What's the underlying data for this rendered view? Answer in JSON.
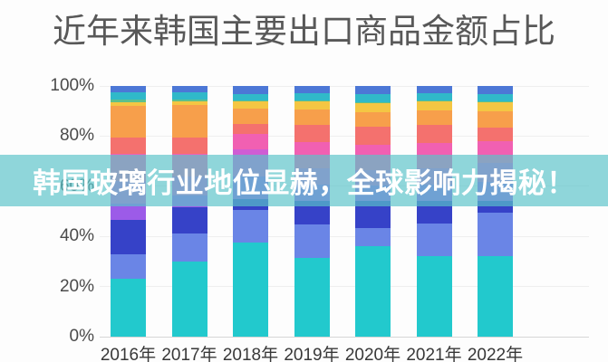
{
  "title": "近年来韩国主要出口商品金额占比",
  "overlay_banner": {
    "text": "韩国玻璃行业地位显赫，全球影响力揭秘！",
    "background": "rgba(90,195,200,0.68)",
    "text_color": "#ffffff"
  },
  "chart_data": {
    "type": "bar",
    "stacked": true,
    "title": "近年来韩国主要出口商品金额占比",
    "xlabel": "",
    "ylabel": "",
    "unit": "percent",
    "ylim": [
      0,
      100
    ],
    "grid": "faint-horizontal",
    "legend": "none",
    "y_ticks": [
      "0%",
      "20%",
      "40%",
      "60%",
      "80%",
      "100%"
    ],
    "categories": [
      "2016年",
      "2017年",
      "2018年",
      "2019年",
      "2020年",
      "2021年",
      "2022年"
    ],
    "series": [
      {
        "name": "segment-1-turquoise",
        "color": "#22c9cd",
        "values": [
          23.0,
          30.0,
          37.5,
          31.4,
          36.0,
          32.1,
          32.1
        ]
      },
      {
        "name": "segment-2-cornflower-blue",
        "color": "#6a85e6",
        "values": [
          10.0,
          11.0,
          13.0,
          13.4,
          7.5,
          13.0,
          17.4
        ]
      },
      {
        "name": "segment-3-indigo",
        "color": "#3642c8",
        "values": [
          13.5,
          10.5,
          4.5,
          9.4,
          10.7,
          9.1,
          4.7
        ]
      },
      {
        "name": "segment-4-purple",
        "color": "#9c5be8",
        "values": [
          6.5,
          5.0,
          9.0,
          6.5,
          6.2,
          6.4,
          7.5
        ]
      },
      {
        "name": "segment-5-magenta",
        "color": "#cf5dd4",
        "values": [
          9.0,
          7.5,
          10.7,
          6.5,
          6.2,
          6.5,
          7.6
        ]
      },
      {
        "name": "segment-6-pink",
        "color": "#f160b2",
        "values": [
          11.0,
          9.0,
          6.2,
          10.4,
          9.9,
          10.2,
          8.7
        ]
      },
      {
        "name": "segment-7-coral-red",
        "color": "#f4716e",
        "values": [
          6.5,
          6.5,
          3.9,
          6.9,
          7.3,
          7.2,
          5.5
        ]
      },
      {
        "name": "segment-8-orange",
        "color": "#f79f4b",
        "values": [
          12.5,
          13.1,
          6.2,
          6.1,
          5.7,
          5.8,
          6.5
        ]
      },
      {
        "name": "segment-9-yellow",
        "color": "#f4c643",
        "values": [
          1.5,
          1.2,
          2.9,
          3.3,
          3.6,
          3.6,
          3.6
        ]
      },
      {
        "name": "segment-10-green",
        "color": "#5dc08d",
        "values": [
          1.0,
          0.9,
          0.3,
          0.3,
          0.3,
          0.3,
          0.3
        ]
      },
      {
        "name": "segment-11-teal-stripe",
        "color": "#30b9c9",
        "values": [
          2.9,
          2.7,
          2.6,
          2.9,
          3.4,
          2.9,
          2.9
        ]
      },
      {
        "name": "segment-12-royal-blue",
        "color": "#4c77d6",
        "values": [
          2.6,
          2.6,
          3.2,
          2.9,
          3.2,
          2.9,
          3.2
        ]
      }
    ]
  }
}
